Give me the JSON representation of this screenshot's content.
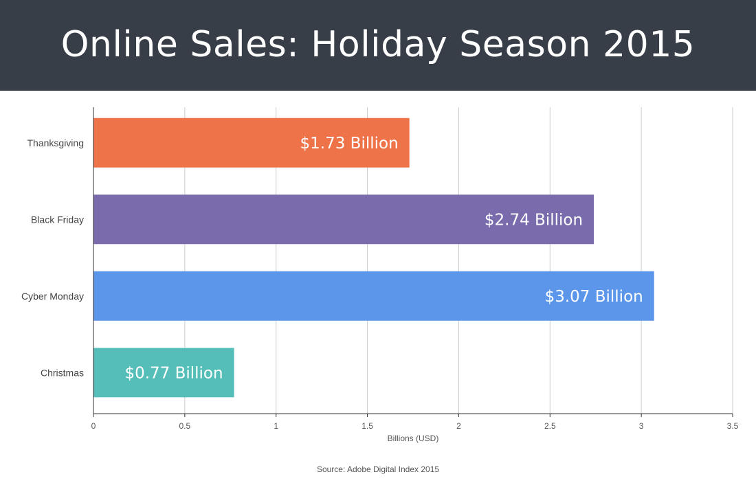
{
  "header": {
    "title": "Online Sales: Holiday Season 2015"
  },
  "source": "Source: Adobe Digital Index 2015",
  "colors": {
    "header_bg": "#383e48",
    "thanksgiving": "#ef7348",
    "black_friday": "#7a6bac",
    "cyber_monday": "#5c96ea",
    "christmas": "#56beb8",
    "grid": "#cccccc"
  },
  "chart_data": {
    "type": "bar",
    "orientation": "horizontal",
    "categories": [
      "Thanksgiving",
      "Black Friday",
      "Cyber Monday",
      "Christmas"
    ],
    "values": [
      1.73,
      2.74,
      3.07,
      0.77
    ],
    "data_labels": [
      "$1.73 Billion",
      "$2.74 Billion",
      "$3.07 Billion",
      "$0.77 Billion"
    ],
    "bar_colors": [
      "#ef7348",
      "#7a6bac",
      "#5c96ea",
      "#56beb8"
    ],
    "title": "Online Sales: Holiday Season 2015",
    "xlabel": "Billions (USD)",
    "ylabel": "",
    "xlim": [
      0,
      3.5
    ],
    "xticks": [
      0,
      0.5,
      1,
      1.5,
      2,
      2.5,
      3,
      3.5
    ],
    "xtick_labels": [
      "0",
      "0.5",
      "1",
      "1.5",
      "2",
      "2.5",
      "3",
      "3.5"
    ],
    "grid": true,
    "legend": "none"
  }
}
